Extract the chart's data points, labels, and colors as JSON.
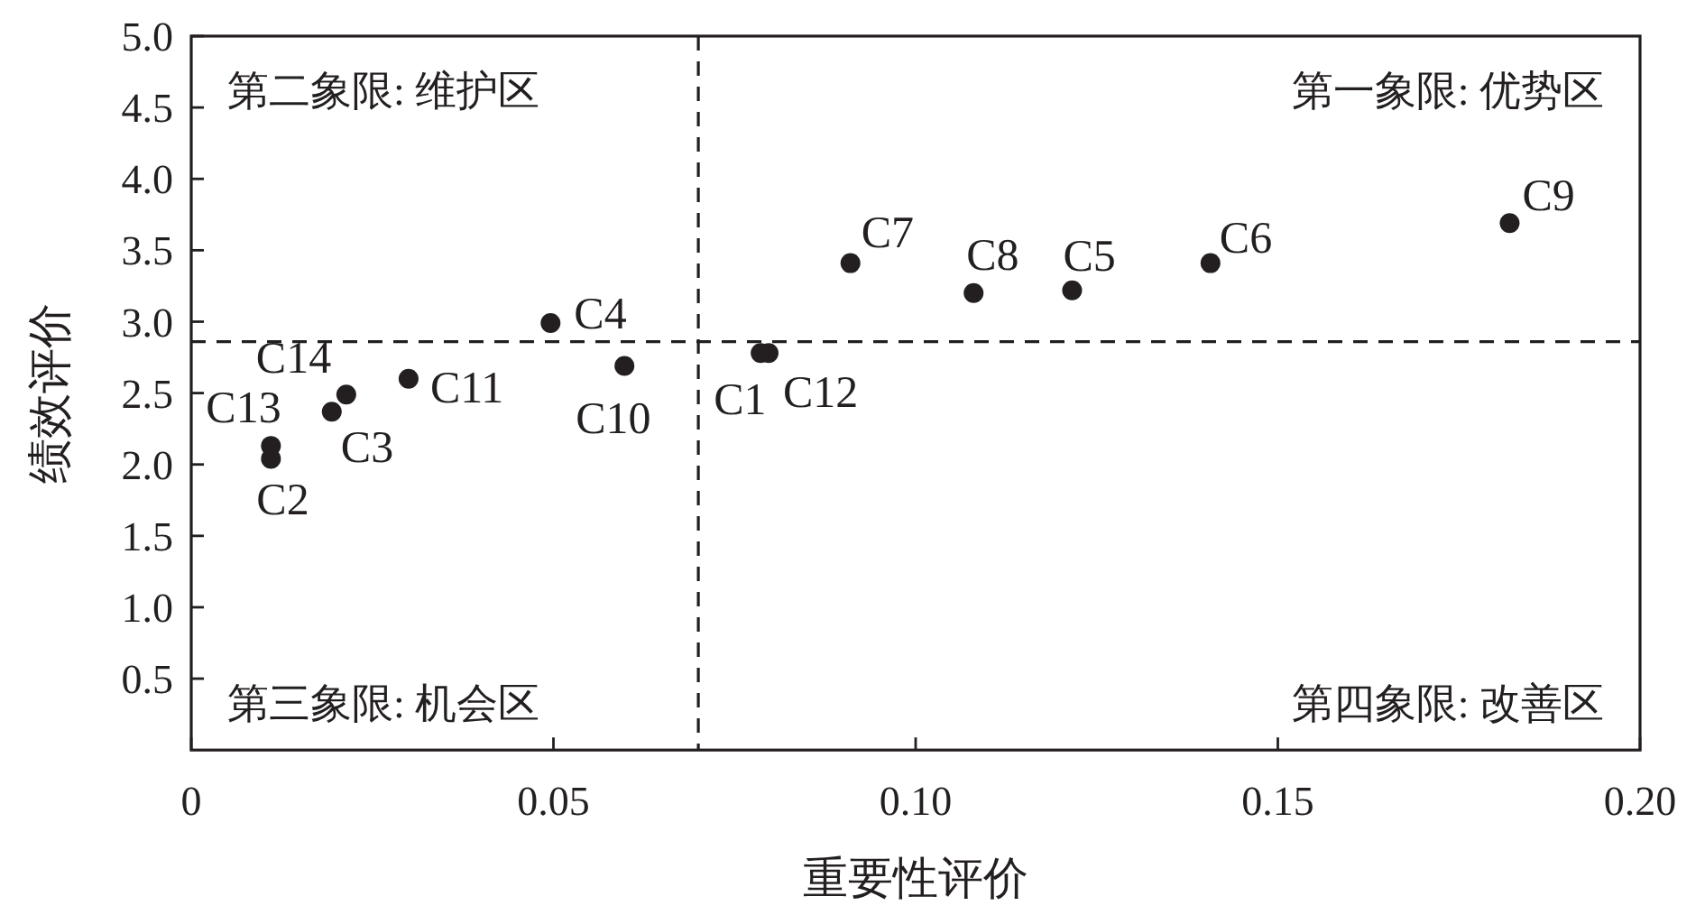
{
  "chart_data": {
    "type": "scatter",
    "xlabel": "重要性评价",
    "ylabel": "绩效评价",
    "series": [
      {
        "color": "#231f20",
        "x": [
          0.0786,
          0.011,
          0.0194,
          0.0496,
          0.1216,
          0.1407,
          0.091,
          0.108,
          0.182,
          0.0598,
          0.03,
          0.0797,
          0.011,
          0.0214
        ],
        "values": [
          2.78,
          2.04,
          2.37,
          2.99,
          3.22,
          3.41,
          3.41,
          3.2,
          3.69,
          2.69,
          2.6,
          2.78,
          2.13,
          2.49
        ],
        "value_labels": [
          "C1",
          "C2",
          "C3",
          "C4",
          "C5",
          "C6",
          "C7",
          "C8",
          "C9",
          "C10",
          "C11",
          "C12",
          "C13",
          "C14"
        ]
      }
    ],
    "xlim": [
      0,
      0.2
    ],
    "xticks": [
      {
        "value": 0,
        "label": "0"
      },
      0.05,
      {
        "value": 0.1,
        "label": "0.10"
      },
      0.15,
      {
        "value": 0.2,
        "label": "0.20"
      }
    ],
    "ylim": [
      0,
      5
    ],
    "yticks": [
      0.5,
      {
        "value": 1,
        "label": "1.0"
      },
      1.5,
      {
        "value": 2,
        "label": "2.0"
      },
      2.5,
      {
        "value": 3,
        "label": "3.0"
      },
      3.5,
      {
        "value": 4,
        "label": "4.0"
      },
      4.5,
      {
        "value": 5,
        "label": "5.0"
      }
    ],
    "ref_lines": [
      {
        "axis": "x",
        "value": 0.07,
        "line_style": "dashed",
        "color": "#231f20"
      },
      {
        "axis": "y",
        "value": 2.86,
        "line_style": "dashed",
        "color": "#231f20"
      }
    ],
    "annotations": [
      "第二象限: 维护区",
      "第一象限: 优势区",
      "第三象限: 机会区",
      "第四象限: 改善区"
    ],
    "marker": "circle"
  }
}
